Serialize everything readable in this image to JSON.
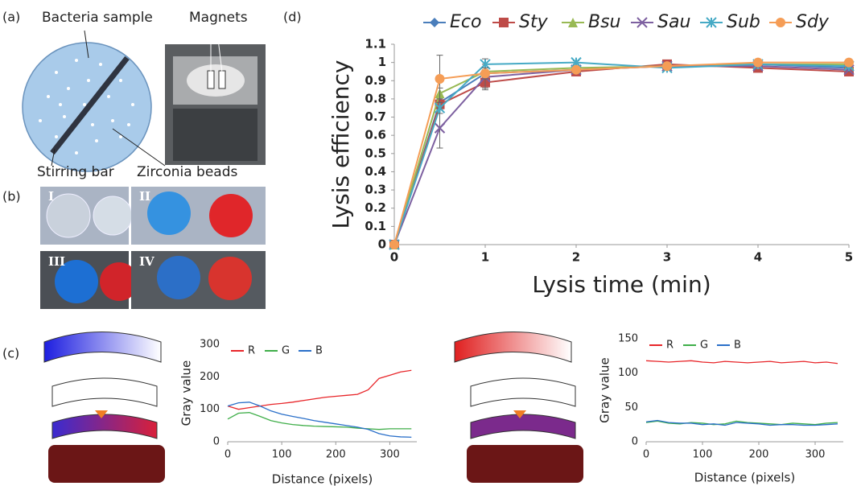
{
  "figure": {
    "panel_labels": [
      "(a)",
      "(b)",
      "(c)",
      "(d)"
    ],
    "annotations": [
      "Bacteria sample",
      "Magnets",
      "Stirring bar",
      "Zirconia beads"
    ],
    "photo_labels": [
      "I",
      "II",
      "III",
      "IV"
    ]
  },
  "chart_data": [
    {
      "type": "line",
      "xlabel": "Lysis time (min)",
      "ylabel": "Lysis efficiency",
      "x": [
        0,
        0.5,
        1,
        2,
        3,
        4,
        5
      ],
      "series": [
        {
          "name": "Eco",
          "color": "#4a7ebb",
          "marker": "diamond",
          "values": [
            0,
            0.78,
            0.94,
            0.96,
            0.98,
            0.99,
            0.97
          ],
          "errors": [
            0,
            0.02,
            0.02,
            0.01,
            0.01,
            0.01,
            0.01
          ]
        },
        {
          "name": "Sty",
          "color": "#be4b48",
          "marker": "square",
          "values": [
            0,
            0.77,
            0.89,
            0.95,
            0.99,
            0.97,
            0.95
          ],
          "errors": [
            0,
            0.03,
            0.03,
            0.02,
            0.02,
            0.01,
            0.01
          ]
        },
        {
          "name": "Bsu",
          "color": "#98b954",
          "marker": "triangle",
          "values": [
            0,
            0.83,
            0.95,
            0.97,
            0.98,
            0.99,
            0.99
          ],
          "errors": [
            0,
            0.03,
            0.02,
            0.01,
            0.01,
            0.01,
            0.01
          ]
        },
        {
          "name": "Sau",
          "color": "#7d60a0",
          "marker": "x",
          "values": [
            0,
            0.64,
            0.92,
            0.96,
            0.98,
            0.98,
            0.96
          ],
          "errors": [
            0,
            0.11,
            0.07,
            0.02,
            0.02,
            0.01,
            0.01
          ]
        },
        {
          "name": "Sub",
          "color": "#46aac5",
          "marker": "star",
          "values": [
            0,
            0.75,
            0.99,
            1.0,
            0.97,
            0.99,
            0.98
          ],
          "errors": [
            0,
            0.03,
            0.03,
            0.01,
            0.01,
            0.01,
            0.01
          ]
        },
        {
          "name": "Sdy",
          "color": "#f59d56",
          "marker": "circle",
          "values": [
            0,
            0.91,
            0.94,
            0.96,
            0.98,
            1.0,
            1.0
          ],
          "errors": [
            0,
            0.13,
            0.03,
            0.02,
            0.02,
            0.01,
            0.01
          ]
        }
      ],
      "xlim": [
        0,
        5
      ],
      "xticks": [
        0,
        1,
        2,
        3,
        4,
        5
      ],
      "ylim": [
        0,
        1.1
      ],
      "yticks": [
        0,
        0.1,
        0.2,
        0.3,
        0.4,
        0.5,
        0.6,
        0.7,
        0.8,
        0.9,
        1,
        1.1
      ],
      "grid": false,
      "legend": "top"
    },
    {
      "type": "line",
      "xlabel": "Distance (pixels)",
      "ylabel": "Gray value",
      "x": [
        0,
        20,
        40,
        60,
        80,
        100,
        120,
        140,
        160,
        180,
        200,
        220,
        240,
        260,
        280,
        300,
        320,
        340
      ],
      "series": [
        {
          "name": "R",
          "color": "#e8262a",
          "values": [
            110,
            100,
            105,
            110,
            115,
            118,
            122,
            127,
            132,
            137,
            140,
            143,
            146,
            160,
            195,
            205,
            215,
            220
          ]
        },
        {
          "name": "G",
          "color": "#3fae49",
          "values": [
            70,
            88,
            90,
            78,
            65,
            58,
            53,
            50,
            48,
            47,
            46,
            45,
            42,
            40,
            38,
            40,
            40,
            40
          ]
        },
        {
          "name": "B",
          "color": "#2a6fc9",
          "values": [
            110,
            120,
            122,
            110,
            95,
            85,
            78,
            72,
            65,
            60,
            55,
            50,
            45,
            38,
            25,
            18,
            15,
            14
          ]
        }
      ],
      "xlim": [
        0,
        350
      ],
      "xticks": [
        0,
        100,
        200,
        300
      ],
      "ylim": [
        0,
        300
      ],
      "yticks": [
        0,
        100,
        200,
        300
      ],
      "grid": false,
      "legend": "upper left"
    },
    {
      "type": "line",
      "xlabel": "Distance (pixels)",
      "ylabel": "Gray value",
      "x": [
        0,
        20,
        40,
        60,
        80,
        100,
        120,
        140,
        160,
        180,
        200,
        220,
        240,
        260,
        280,
        300,
        320,
        340
      ],
      "series": [
        {
          "name": "R",
          "color": "#e8262a",
          "values": [
            118,
            117,
            116,
            117,
            118,
            116,
            115,
            117,
            116,
            115,
            116,
            117,
            115,
            116,
            117,
            115,
            116,
            114
          ]
        },
        {
          "name": "G",
          "color": "#3fae49",
          "values": [
            28,
            30,
            27,
            26,
            28,
            27,
            25,
            26,
            30,
            28,
            27,
            26,
            25,
            27,
            26,
            25,
            27,
            28
          ]
        },
        {
          "name": "B",
          "color": "#2a6fc9",
          "values": [
            29,
            31,
            28,
            27,
            27,
            25,
            26,
            24,
            28,
            27,
            26,
            24,
            25,
            25,
            24,
            24,
            25,
            26
          ]
        }
      ],
      "xlim": [
        0,
        350
      ],
      "xticks": [
        0,
        100,
        200,
        300
      ],
      "ylim": [
        0,
        150
      ],
      "yticks": [
        0,
        50,
        100,
        150
      ],
      "grid": false,
      "legend": "upper left"
    }
  ]
}
